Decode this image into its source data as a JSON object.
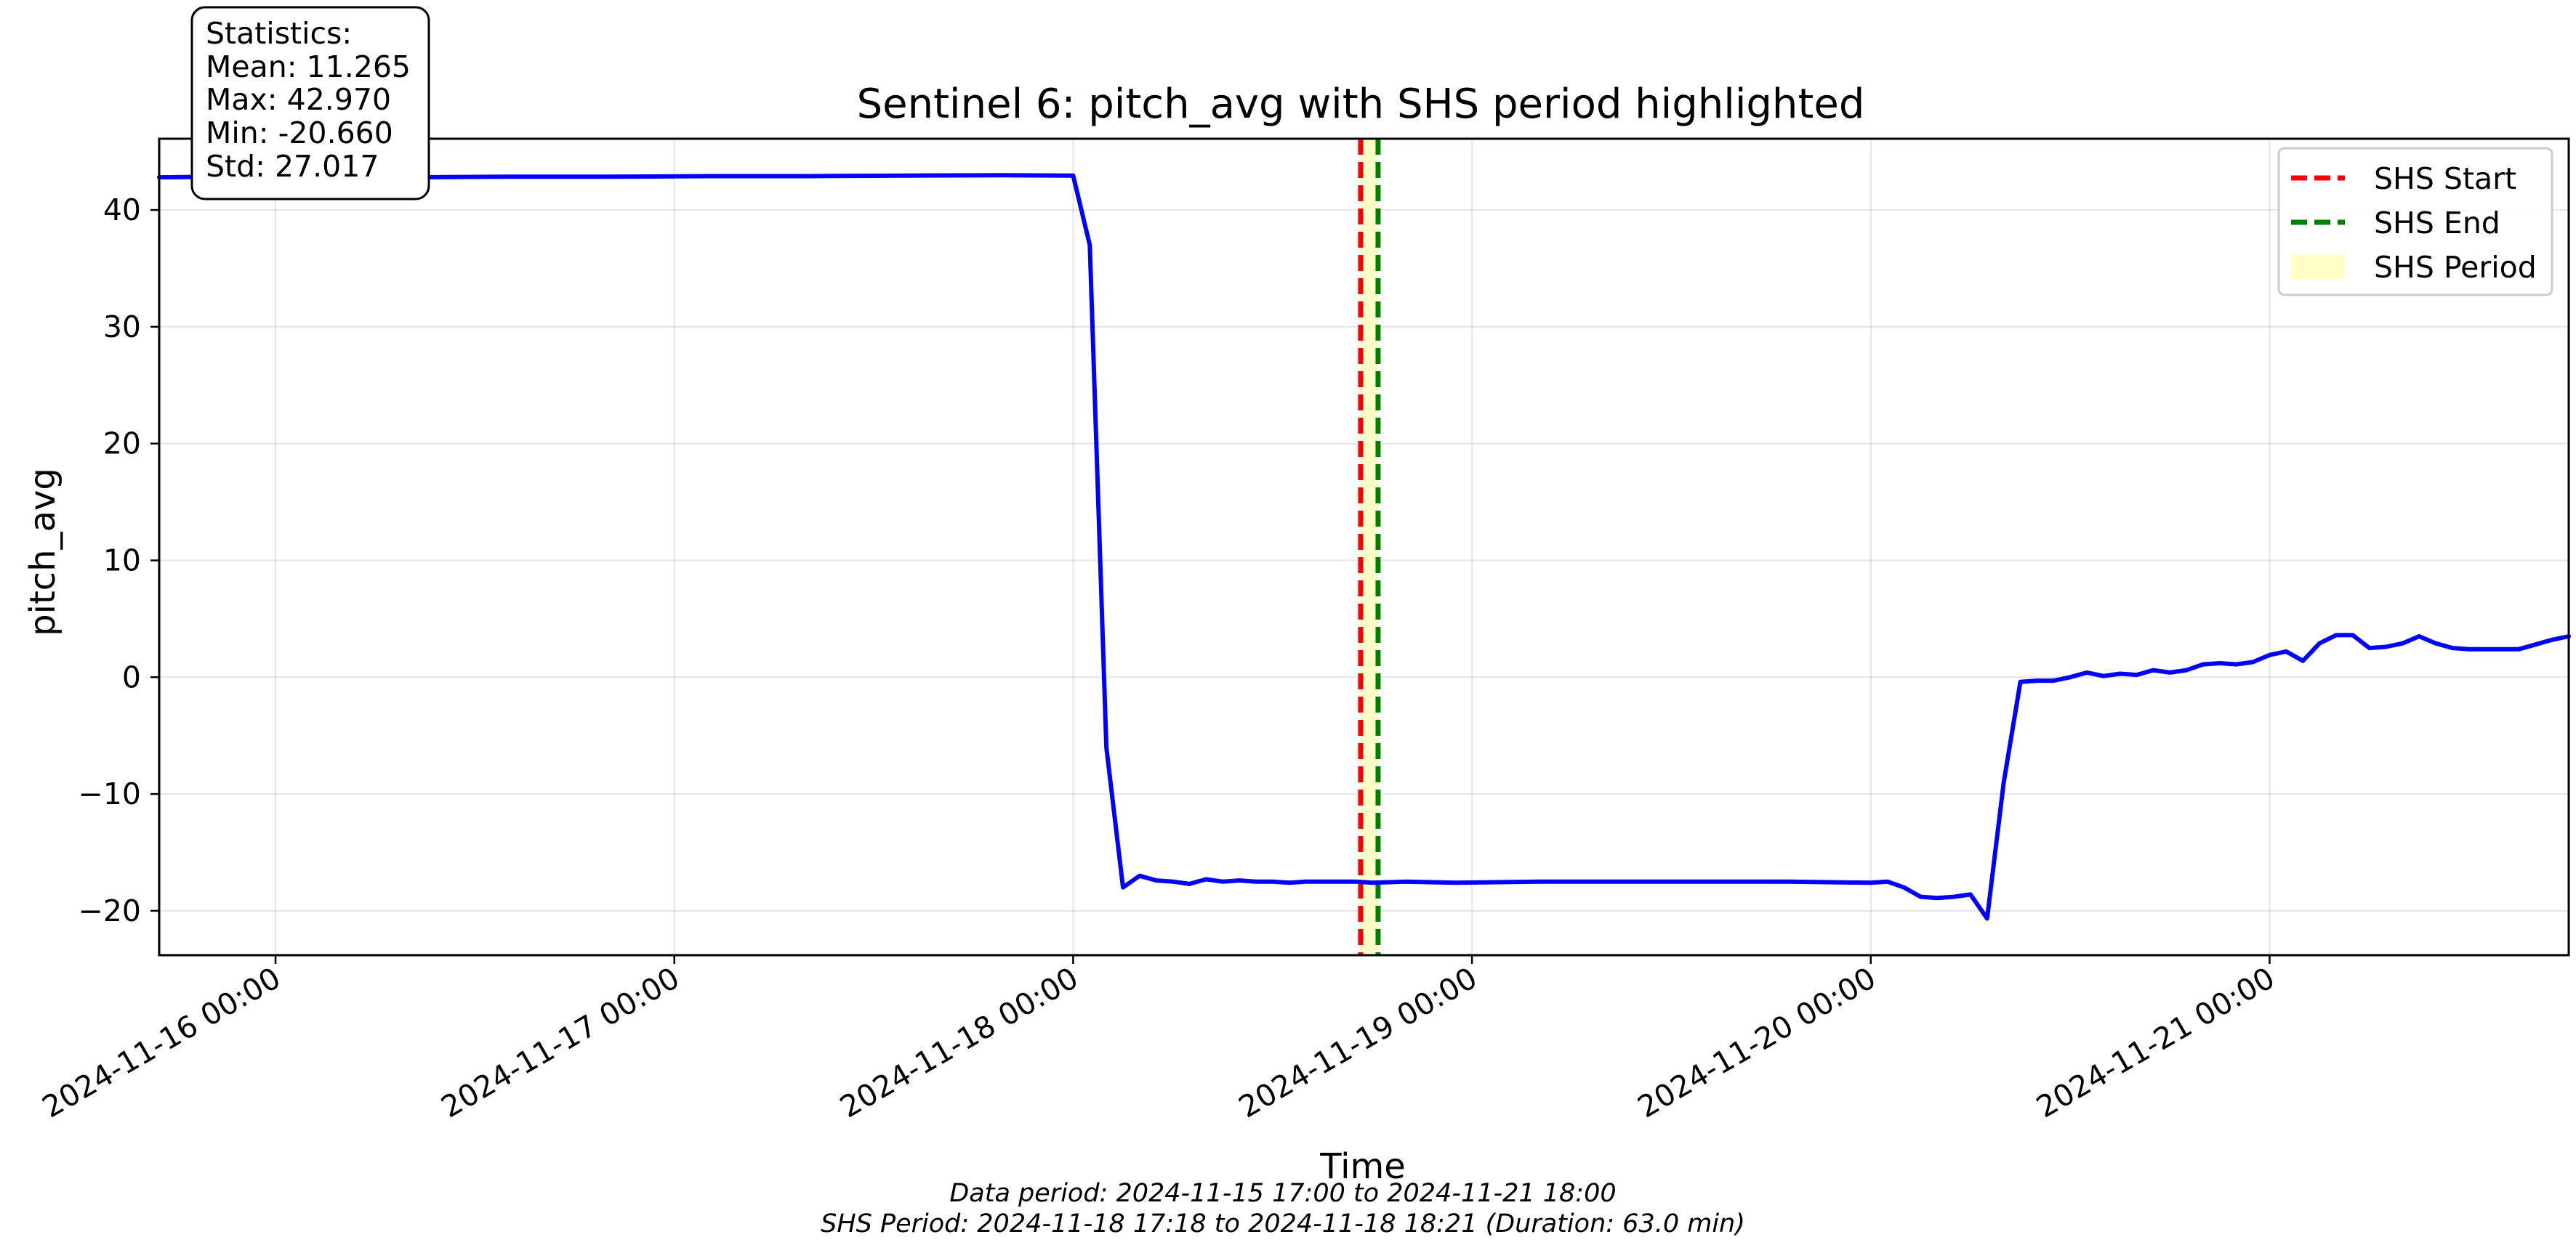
{
  "chart_data": {
    "type": "line",
    "title": "Sentinel 6: pitch_avg with SHS period highlighted",
    "xlabel": "Time",
    "ylabel": "pitch_avg",
    "x_axis_type": "datetime",
    "xlim": [
      "2024-11-15 17:00",
      "2024-11-21 18:00"
    ],
    "ylim": [
      -23.8,
      46.1
    ],
    "x_ticks": [
      "2024-11-16 00:00",
      "2024-11-17 00:00",
      "2024-11-18 00:00",
      "2024-11-19 00:00",
      "2024-11-20 00:00",
      "2024-11-21 00:00"
    ],
    "y_ticks": [
      -20,
      -10,
      0,
      10,
      20,
      30,
      40
    ],
    "y_tick_labels": [
      "−20",
      "−10",
      "0",
      "10",
      "20",
      "30",
      "40"
    ],
    "grid": true,
    "legend_position": "top-right",
    "series": [
      {
        "name": "",
        "color": "#0000ff",
        "x": [
          "2024-11-15 17:00",
          "2024-11-15 21:00",
          "2024-11-16 02:00",
          "2024-11-16 08:00",
          "2024-11-16 14:00",
          "2024-11-16 20:00",
          "2024-11-17 02:00",
          "2024-11-17 08:00",
          "2024-11-17 14:00",
          "2024-11-17 20:00",
          "2024-11-18 00:00",
          "2024-11-18 01:00",
          "2024-11-18 02:00",
          "2024-11-18 03:00",
          "2024-11-18 04:00",
          "2024-11-18 05:00",
          "2024-11-18 06:00",
          "2024-11-18 07:00",
          "2024-11-18 08:00",
          "2024-11-18 09:00",
          "2024-11-18 10:00",
          "2024-11-18 11:00",
          "2024-11-18 12:00",
          "2024-11-18 13:00",
          "2024-11-18 14:00",
          "2024-11-18 15:00",
          "2024-11-18 16:00",
          "2024-11-18 17:00",
          "2024-11-18 18:00",
          "2024-11-18 20:00",
          "2024-11-18 23:00",
          "2024-11-19 04:00",
          "2024-11-19 09:00",
          "2024-11-19 14:00",
          "2024-11-19 19:00",
          "2024-11-20 00:00",
          "2024-11-20 01:00",
          "2024-11-20 02:00",
          "2024-11-20 03:00",
          "2024-11-20 04:00",
          "2024-11-20 05:00",
          "2024-11-20 06:00",
          "2024-11-20 07:00",
          "2024-11-20 08:00",
          "2024-11-20 09:00",
          "2024-11-20 10:00",
          "2024-11-20 11:00",
          "2024-11-20 12:00",
          "2024-11-20 13:00",
          "2024-11-20 14:00",
          "2024-11-20 15:00",
          "2024-11-20 16:00",
          "2024-11-20 17:00",
          "2024-11-20 18:00",
          "2024-11-20 19:00",
          "2024-11-20 20:00",
          "2024-11-20 21:00",
          "2024-11-20 22:00",
          "2024-11-20 23:00",
          "2024-11-21 00:00",
          "2024-11-21 01:00",
          "2024-11-21 02:00",
          "2024-11-21 03:00",
          "2024-11-21 04:00",
          "2024-11-21 05:00",
          "2024-11-21 06:00",
          "2024-11-21 07:00",
          "2024-11-21 08:00",
          "2024-11-21 09:00",
          "2024-11-21 10:00",
          "2024-11-21 11:00",
          "2024-11-21 12:00",
          "2024-11-21 13:00",
          "2024-11-21 14:00",
          "2024-11-21 15:00",
          "2024-11-21 16:00",
          "2024-11-21 17:00",
          "2024-11-21 18:00"
        ],
        "y": [
          42.8,
          42.85,
          42.8,
          42.8,
          42.85,
          42.85,
          42.9,
          42.9,
          42.95,
          42.97,
          42.95,
          37.0,
          -6.0,
          -18.0,
          -17.0,
          -17.4,
          -17.5,
          -17.7,
          -17.3,
          -17.5,
          -17.4,
          -17.5,
          -17.5,
          -17.6,
          -17.5,
          -17.5,
          -17.5,
          -17.5,
          -17.6,
          -17.5,
          -17.6,
          -17.5,
          -17.5,
          -17.5,
          -17.5,
          -17.6,
          -17.5,
          -18.0,
          -18.8,
          -18.9,
          -18.8,
          -18.6,
          -20.66,
          -9.0,
          -0.4,
          -0.3,
          -0.3,
          0.0,
          0.4,
          0.1,
          0.3,
          0.2,
          0.6,
          0.4,
          0.6,
          1.1,
          1.2,
          1.1,
          1.3,
          1.9,
          2.2,
          1.4,
          2.9,
          3.6,
          3.6,
          2.5,
          2.6,
          2.9,
          3.5,
          2.9,
          2.5,
          2.4,
          2.4,
          2.4,
          2.4,
          2.8,
          3.2,
          3.5
        ]
      }
    ],
    "shs_start": "2024-11-18 17:18",
    "shs_end": "2024-11-18 18:21",
    "legend": [
      {
        "label": "SHS Start",
        "color": "#ff0000",
        "style": "dashed"
      },
      {
        "label": "SHS End",
        "color": "#008000",
        "style": "dashed"
      },
      {
        "label": "SHS Period",
        "color": "#ffffc0",
        "style": "fill"
      }
    ],
    "stats_box": {
      "header": "Statistics:",
      "mean": "Mean: 11.265",
      "max": "Max: 42.970",
      "min": "Min: -20.660",
      "std": "Std: 27.017"
    },
    "footer": {
      "line1": "Data period: 2024-11-15 17:00 to 2024-11-21 18:00",
      "line2": "SHS Period: 2024-11-18 17:18 to 2024-11-18 18:21 (Duration: 63.0 min)"
    }
  }
}
